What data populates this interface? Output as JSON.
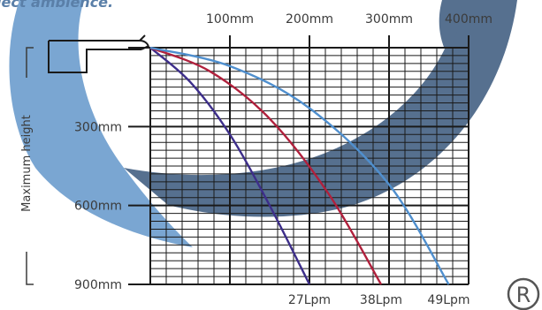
{
  "header_fragment": "lect ambience.",
  "registered_mark": "R",
  "colors": {
    "swirl_light": "#7aa6d2",
    "swirl_dark": "#56708f",
    "grid": "#1a1a1a",
    "series_27": "#3d2e8a",
    "series_38": "#b0203c",
    "series_49": "#4f8fce"
  },
  "chart_data": {
    "type": "line",
    "ylabel": "Maximum height",
    "x_ticks": [
      "100mm",
      "200mm",
      "300mm",
      "400mm"
    ],
    "y_ticks": [
      "300mm",
      "600mm",
      "900mm"
    ],
    "x_range_mm": [
      0,
      400
    ],
    "y_range_mm": [
      0,
      900
    ],
    "series": [
      {
        "name": "27Lpm",
        "x": [
          0,
          50,
          100,
          150,
          200
        ],
        "y": [
          0,
          130,
          330,
          600,
          900
        ]
      },
      {
        "name": "38Lpm",
        "x": [
          0,
          75,
          150,
          225,
          290
        ],
        "y": [
          0,
          90,
          270,
          560,
          900
        ]
      },
      {
        "name": "49Lpm",
        "x": [
          0,
          100,
          200,
          300,
          375
        ],
        "y": [
          0,
          70,
          230,
          520,
          900
        ]
      }
    ]
  }
}
